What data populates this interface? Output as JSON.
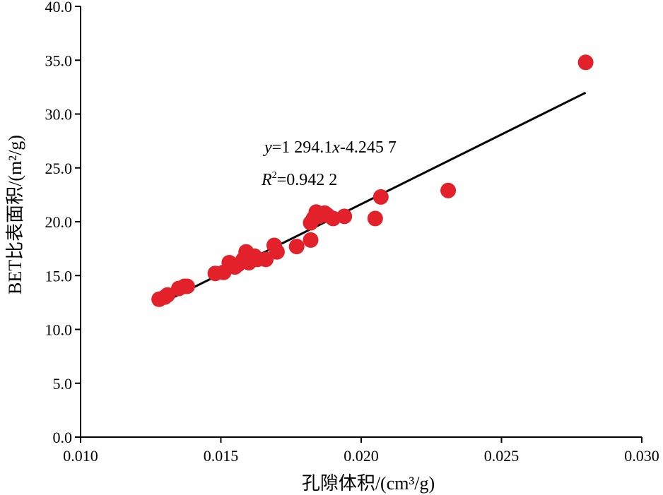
{
  "chart_data": {
    "type": "scatter",
    "title": "",
    "xlabel": "孔隙体积/(cm³/g)",
    "ylabel": "BET比表面积/(m²/g)",
    "xlim": [
      0.01,
      0.03
    ],
    "ylim": [
      0.0,
      40.0
    ],
    "x_ticks": [
      "0.010",
      "0.015",
      "0.020",
      "0.025",
      "0.030"
    ],
    "y_ticks": [
      "0.0",
      "5.0",
      "10.0",
      "15.0",
      "20.0",
      "25.0",
      "30.0",
      "35.0",
      "40.0"
    ],
    "grid": false,
    "legend": "none",
    "point_color": "#e3212b",
    "line_color": "#000000",
    "series": [
      {
        "name": "",
        "x": [
          0.0128,
          0.013,
          0.0131,
          0.0135,
          0.0137,
          0.0138,
          0.0148,
          0.0151,
          0.0153,
          0.0155,
          0.0156,
          0.0158,
          0.0159,
          0.016,
          0.0162,
          0.0163,
          0.0166,
          0.0169,
          0.017,
          0.0177,
          0.0182,
          0.0182,
          0.0183,
          0.0184,
          0.0185,
          0.0187,
          0.0188,
          0.019,
          0.0194,
          0.0205,
          0.0207,
          0.0231,
          0.028
        ],
        "y": [
          12.8,
          13.0,
          13.2,
          13.8,
          14.0,
          14.0,
          15.2,
          15.3,
          16.2,
          15.8,
          16.0,
          16.5,
          17.2,
          16.2,
          16.8,
          16.5,
          16.5,
          17.8,
          17.2,
          17.7,
          18.3,
          19.9,
          20.3,
          20.9,
          20.5,
          20.8,
          20.6,
          20.3,
          20.5,
          20.3,
          22.3,
          22.9,
          34.8
        ]
      }
    ],
    "fit": {
      "x_range": [
        0.0128,
        0.028
      ],
      "slope": 1294.1,
      "intercept": -4.2457,
      "eq_y": "y",
      "eq_mid": "=1 294.1",
      "eq_x": "x",
      "eq_rest": "-4.245 7",
      "r2_r": "R",
      "r2_sup": "2",
      "r2_rest": "=0.942 2"
    }
  }
}
